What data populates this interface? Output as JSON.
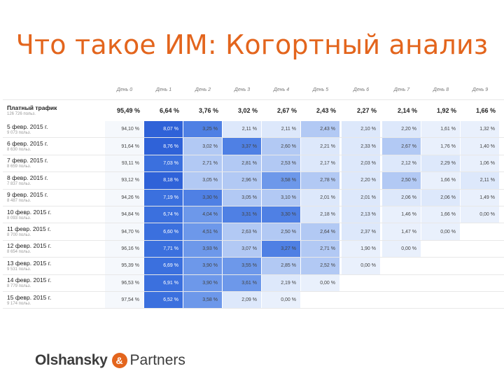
{
  "title": "Что такое ИМ: Когортный анализ",
  "table": {
    "day_headers": [
      "День 0",
      "День 1",
      "День 2",
      "День 3",
      "День 4",
      "День 5",
      "День 6",
      "День 7",
      "День 8",
      "День 9"
    ],
    "total": {
      "label": "Платный трафик",
      "sub": "126 726 польз.",
      "values": [
        "95,49 %",
        "6,64 %",
        "3,76 %",
        "3,02 %",
        "2,67 %",
        "2,43 %",
        "2,27 %",
        "2,14 %",
        "1,92 %",
        "1,66 %"
      ]
    },
    "rows": [
      {
        "label": "5 февр. 2015 г.",
        "sub": "9 073 польз.",
        "values": [
          "94,10 %",
          "8,07 %",
          "3,25 %",
          "2,11 %",
          "2,11 %",
          "2,43 %",
          "2,10 %",
          "2,20 %",
          "1,61 %",
          "1,32 %"
        ]
      },
      {
        "label": "6 февр. 2015 г.",
        "sub": "8 630 польз.",
        "values": [
          "91,64 %",
          "8,76 %",
          "3,02 %",
          "3,37 %",
          "2,60 %",
          "2,21 %",
          "2,33 %",
          "2,67 %",
          "1,76 %",
          "1,40 %"
        ]
      },
      {
        "label": "7 февр. 2015 г.",
        "sub": "8 659 польз.",
        "values": [
          "93,11 %",
          "7,03 %",
          "2,71 %",
          "2,81 %",
          "2,53 %",
          "2,17 %",
          "2,03 %",
          "2,12 %",
          "2,29 %",
          "1,06 %"
        ]
      },
      {
        "label": "8 февр. 2015 г.",
        "sub": "7 837 польз.",
        "values": [
          "93,12 %",
          "8,18 %",
          "3,05 %",
          "2,96 %",
          "3,58 %",
          "2,78 %",
          "2,20 %",
          "2,50 %",
          "1,66 %",
          "2,11 %"
        ]
      },
      {
        "label": "9 февр. 2015 г.",
        "sub": "8 487 польз.",
        "values": [
          "94,26 %",
          "7,19 %",
          "3,30 %",
          "3,05 %",
          "3,10 %",
          "2,01 %",
          "2,01 %",
          "2,06 %",
          "2,06 %",
          "1,49 %"
        ]
      },
      {
        "label": "10 февр. 2015 г.",
        "sub": "8 093 польз.",
        "values": [
          "94,84 %",
          "6,74 %",
          "4,04 %",
          "3,31 %",
          "3,30 %",
          "2,18 %",
          "2,13 %",
          "1,46 %",
          "1,66 %",
          "0,00 %"
        ]
      },
      {
        "label": "11 февр. 2015 г.",
        "sub": "8 700 польз.",
        "values": [
          "94,70 %",
          "6,60 %",
          "4,51 %",
          "2,63 %",
          "2,50 %",
          "2,64 %",
          "2,37 %",
          "1,47 %",
          "0,00 %",
          ""
        ]
      },
      {
        "label": "12 февр. 2015 г.",
        "sub": "8 654 польз.",
        "values": [
          "96,16 %",
          "7,71 %",
          "3,93 %",
          "3,07 %",
          "3,27 %",
          "2,71 %",
          "1,90 %",
          "0,00 %",
          "",
          ""
        ]
      },
      {
        "label": "13 февр. 2015 г.",
        "sub": "9 531 польз.",
        "values": [
          "95,39 %",
          "6,69 %",
          "3,90 %",
          "3,55 %",
          "2,85 %",
          "2,52 %",
          "0,00 %",
          "",
          "",
          ""
        ]
      },
      {
        "label": "14 февр. 2015 г.",
        "sub": "8 779 польз.",
        "values": [
          "96,53 %",
          "6,91 %",
          "3,90 %",
          "3,61 %",
          "2,19 %",
          "0,00 %",
          "",
          "",
          "",
          ""
        ]
      },
      {
        "label": "15 февр. 2015 г.",
        "sub": "9 174 польз.",
        "values": [
          "97,54 %",
          "6,52 %",
          "3,58 %",
          "2,09 %",
          "0,00 %",
          "",
          "",
          "",
          "",
          ""
        ]
      }
    ],
    "colors": {
      "day0": "#f5f8fc",
      "day1_dark": "#2f62d8",
      "day1_mid": "#3b70de",
      "light": "#dde8fb",
      "lighter": "#e9f0fc",
      "mid": "#b2c9f4",
      "strong": "#6d98ea",
      "strongest": "#4f80e4"
    }
  },
  "footer": {
    "logo_word1": "Olshansky",
    "logo_amp": "&",
    "logo_word2": "Partners"
  }
}
